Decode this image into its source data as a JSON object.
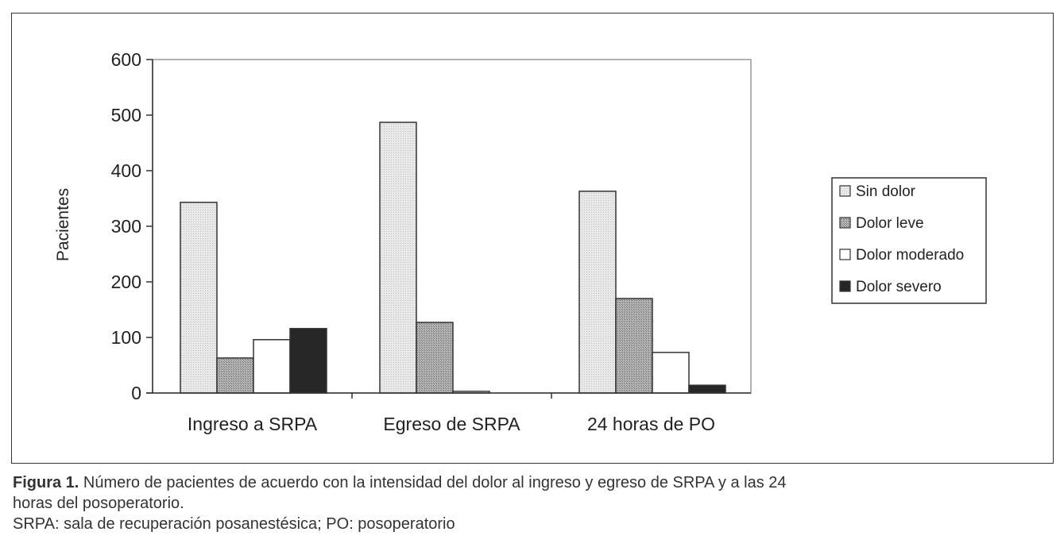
{
  "chart_data": {
    "type": "bar",
    "categories": [
      "Ingreso a SRPA",
      "Egreso de SRPA",
      "24 horas de PO"
    ],
    "series": [
      {
        "name": "Sin dolor",
        "values": [
          343,
          487,
          363
        ],
        "fill": "#e6e6e6"
      },
      {
        "name": "Dolor leve",
        "values": [
          63,
          127,
          170
        ],
        "fill": "#a9a9a9"
      },
      {
        "name": "Dolor moderado",
        "values": [
          96,
          3,
          73
        ],
        "fill": "#ffffff"
      },
      {
        "name": "Dolor severo",
        "values": [
          116,
          0,
          14
        ],
        "fill": "#262626"
      }
    ],
    "ylabel": "Pacientes",
    "ylim": [
      0,
      600
    ],
    "yticks": [
      0,
      100,
      200,
      300,
      400,
      500,
      600
    ],
    "grid": false,
    "legend_position": "right"
  },
  "caption": {
    "label": "Figura 1.",
    "line1": " Número de pacientes de acuerdo con la intensidad del dolor al ingreso y egreso de SRPA y a las 24",
    "line2": "horas del posoperatorio.",
    "line3": "SRPA: sala de recuperación posanestésica; PO: posoperatorio"
  }
}
